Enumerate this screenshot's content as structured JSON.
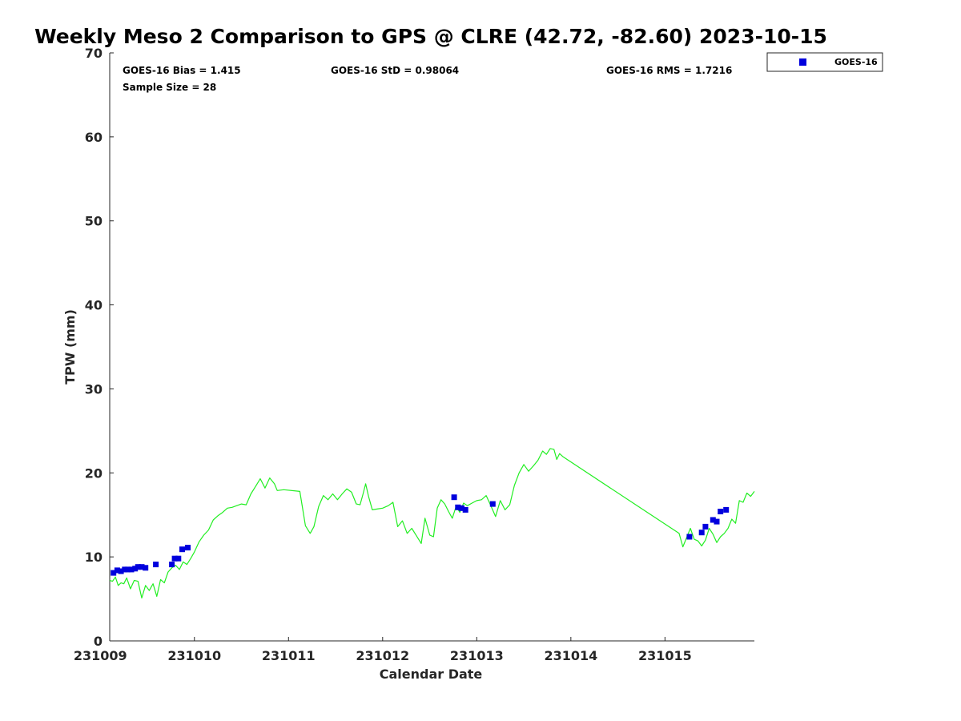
{
  "chart_data": {
    "type": "scatter",
    "title": "Weekly Meso 2 Comparison to GPS @ CLRE (42.72, -82.60) 2023-10-15",
    "xlabel": "Calendar Date",
    "ylabel": "TPW (mm)",
    "xlim": [
      231009.0,
      231015.95
    ],
    "ylim": [
      0,
      70
    ],
    "x_ticks": [
      231009,
      231010,
      231011,
      231012,
      231013,
      231014,
      231015
    ],
    "x_tick_labels": [
      "231009",
      "231010",
      "231011",
      "231012",
      "231013",
      "231014",
      "231015"
    ],
    "y_ticks": [
      0,
      10,
      20,
      30,
      40,
      50,
      60,
      70
    ],
    "y_tick_labels": [
      "0",
      "10",
      "20",
      "30",
      "40",
      "50",
      "60",
      "70"
    ],
    "grid": false,
    "legend_position": "top-right",
    "stats": {
      "bias": "GOES-16 Bias = 1.415",
      "std": "GOES-16 StD = 0.98064",
      "rms": "GOES-16 RMS = 1.7216",
      "sample_size": "Sample Size = 28"
    },
    "series": [
      {
        "name": "GOES-16",
        "kind": "scatter",
        "marker": "square",
        "color": "#0000dd",
        "points": [
          [
            231009.14,
            8.1
          ],
          [
            231009.18,
            8.4
          ],
          [
            231009.22,
            8.3
          ],
          [
            231009.26,
            8.5
          ],
          [
            231009.29,
            8.5
          ],
          [
            231009.33,
            8.5
          ],
          [
            231009.37,
            8.6
          ],
          [
            231009.4,
            8.8
          ],
          [
            231009.44,
            8.8
          ],
          [
            231009.48,
            8.7
          ],
          [
            231009.59,
            9.1
          ],
          [
            231009.76,
            9.1
          ],
          [
            231009.79,
            9.8
          ],
          [
            231009.83,
            9.8
          ],
          [
            231009.87,
            10.9
          ],
          [
            231009.93,
            11.1
          ],
          [
            231012.76,
            17.1
          ],
          [
            231012.8,
            15.9
          ],
          [
            231012.84,
            15.8
          ],
          [
            231012.88,
            15.6
          ],
          [
            231013.17,
            16.3
          ],
          [
            231015.26,
            12.4
          ],
          [
            231015.39,
            12.9
          ],
          [
            231015.43,
            13.6
          ],
          [
            231015.51,
            14.4
          ],
          [
            231015.55,
            14.2
          ],
          [
            231015.59,
            15.4
          ],
          [
            231015.65,
            15.6
          ]
        ]
      },
      {
        "kind": "line",
        "color": "#22ee22",
        "points": [
          [
            231009.1,
            7.2
          ],
          [
            231009.13,
            7.1
          ],
          [
            231009.16,
            7.6
          ],
          [
            231009.19,
            6.6
          ],
          [
            231009.22,
            6.9
          ],
          [
            231009.25,
            6.8
          ],
          [
            231009.28,
            7.5
          ],
          [
            231009.32,
            6.2
          ],
          [
            231009.36,
            7.2
          ],
          [
            231009.4,
            7.1
          ],
          [
            231009.44,
            5.1
          ],
          [
            231009.48,
            6.6
          ],
          [
            231009.52,
            6.0
          ],
          [
            231009.56,
            6.8
          ],
          [
            231009.6,
            5.3
          ],
          [
            231009.64,
            7.3
          ],
          [
            231009.68,
            6.9
          ],
          [
            231009.72,
            8.2
          ],
          [
            231009.76,
            8.7
          ],
          [
            231009.8,
            9.0
          ],
          [
            231009.84,
            8.5
          ],
          [
            231009.88,
            9.4
          ],
          [
            231009.92,
            9.1
          ],
          [
            231009.96,
            9.8
          ],
          [
            231010.0,
            10.6
          ],
          [
            231010.05,
            11.8
          ],
          [
            231010.1,
            12.6
          ],
          [
            231010.15,
            13.2
          ],
          [
            231010.2,
            14.4
          ],
          [
            231010.25,
            14.9
          ],
          [
            231010.3,
            15.3
          ],
          [
            231010.35,
            15.8
          ],
          [
            231010.4,
            15.9
          ],
          [
            231010.45,
            16.1
          ],
          [
            231010.5,
            16.3
          ],
          [
            231010.55,
            16.2
          ],
          [
            231010.6,
            17.5
          ],
          [
            231010.65,
            18.4
          ],
          [
            231010.7,
            19.3
          ],
          [
            231010.75,
            18.2
          ],
          [
            231010.8,
            19.4
          ],
          [
            231010.85,
            18.7
          ],
          [
            231010.88,
            17.9
          ],
          [
            231010.95,
            18.0
          ],
          [
            231011.12,
            17.8
          ],
          [
            231011.18,
            13.7
          ],
          [
            231011.23,
            12.8
          ],
          [
            231011.27,
            13.6
          ],
          [
            231011.32,
            16.0
          ],
          [
            231011.37,
            17.3
          ],
          [
            231011.42,
            16.8
          ],
          [
            231011.47,
            17.5
          ],
          [
            231011.52,
            16.8
          ],
          [
            231011.57,
            17.5
          ],
          [
            231011.62,
            18.1
          ],
          [
            231011.67,
            17.7
          ],
          [
            231011.72,
            16.3
          ],
          [
            231011.76,
            16.2
          ],
          [
            231011.79,
            17.4
          ],
          [
            231011.82,
            18.7
          ],
          [
            231011.85,
            17.2
          ],
          [
            231011.89,
            15.6
          ],
          [
            231011.94,
            15.7
          ],
          [
            231012.0,
            15.8
          ],
          [
            231012.06,
            16.1
          ],
          [
            231012.11,
            16.5
          ],
          [
            231012.16,
            13.6
          ],
          [
            231012.21,
            14.3
          ],
          [
            231012.26,
            12.8
          ],
          [
            231012.31,
            13.4
          ],
          [
            231012.36,
            12.5
          ],
          [
            231012.41,
            11.6
          ],
          [
            231012.45,
            14.6
          ],
          [
            231012.5,
            12.6
          ],
          [
            231012.54,
            12.4
          ],
          [
            231012.58,
            15.8
          ],
          [
            231012.62,
            16.8
          ],
          [
            231012.66,
            16.3
          ],
          [
            231012.7,
            15.4
          ],
          [
            231012.74,
            14.6
          ],
          [
            231012.78,
            16.0
          ],
          [
            231012.82,
            15.3
          ],
          [
            231012.86,
            16.4
          ],
          [
            231012.9,
            16.1
          ],
          [
            231012.95,
            16.4
          ],
          [
            231013.0,
            16.7
          ],
          [
            231013.05,
            16.8
          ],
          [
            231013.1,
            17.3
          ],
          [
            231013.15,
            16.1
          ],
          [
            231013.2,
            14.8
          ],
          [
            231013.25,
            16.7
          ],
          [
            231013.3,
            15.6
          ],
          [
            231013.35,
            16.2
          ],
          [
            231013.4,
            18.5
          ],
          [
            231013.45,
            20.0
          ],
          [
            231013.5,
            21.0
          ],
          [
            231013.55,
            20.2
          ],
          [
            231013.6,
            20.8
          ],
          [
            231013.65,
            21.5
          ],
          [
            231013.7,
            22.6
          ],
          [
            231013.74,
            22.2
          ],
          [
            231013.78,
            22.9
          ],
          [
            231013.82,
            22.8
          ],
          [
            231013.85,
            21.6
          ],
          [
            231013.88,
            22.3
          ],
          [
            231013.92,
            21.9
          ],
          [
            231015.15,
            12.8
          ],
          [
            231015.19,
            11.2
          ],
          [
            231015.23,
            12.3
          ],
          [
            231015.27,
            13.4
          ],
          [
            231015.31,
            12.1
          ],
          [
            231015.35,
            11.9
          ],
          [
            231015.39,
            11.3
          ],
          [
            231015.43,
            12.0
          ],
          [
            231015.47,
            13.4
          ],
          [
            231015.51,
            12.7
          ],
          [
            231015.55,
            11.7
          ],
          [
            231015.59,
            12.4
          ],
          [
            231015.63,
            12.8
          ],
          [
            231015.67,
            13.4
          ],
          [
            231015.71,
            14.5
          ],
          [
            231015.75,
            14.0
          ],
          [
            231015.79,
            16.7
          ],
          [
            231015.83,
            16.5
          ],
          [
            231015.87,
            17.6
          ],
          [
            231015.91,
            17.2
          ],
          [
            231015.95,
            17.8
          ]
        ]
      }
    ]
  }
}
